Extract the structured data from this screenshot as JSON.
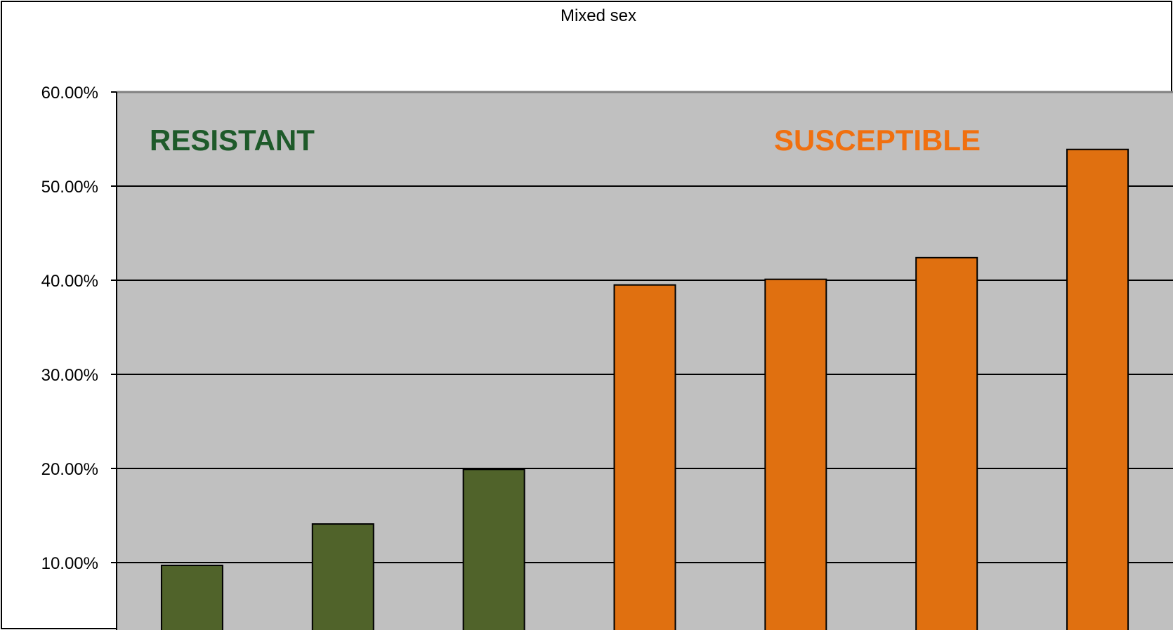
{
  "chart_data": {
    "type": "bar",
    "title": "Mixed sex",
    "xlabel": "",
    "ylabel": "",
    "ylim": [
      0.05,
      0.6
    ],
    "yticks": [
      0.1,
      0.2,
      0.3,
      0.4,
      0.5,
      0.6
    ],
    "ytick_labels": [
      "10.00%",
      "20.00%",
      "30.00%",
      "40.00%",
      "50.00%",
      "60.00%"
    ],
    "categories": [
      "",
      "",
      "",
      "",
      "",
      "",
      ""
    ],
    "values": [
      0.097,
      0.141,
      0.199,
      0.395,
      0.401,
      0.424,
      0.539
    ],
    "bar_colors": [
      "#50632A",
      "#50632A",
      "#50632A",
      "#E07010",
      "#E07010",
      "#E07010",
      "#E07010"
    ],
    "grid": true,
    "legend": "none",
    "annotations": [
      {
        "text": "RESISTANT",
        "color": "#1E5A2A"
      },
      {
        "text": "SUSCEPTIBLE",
        "color": "#F07010"
      }
    ],
    "plot_background": "#C0C0C0"
  }
}
